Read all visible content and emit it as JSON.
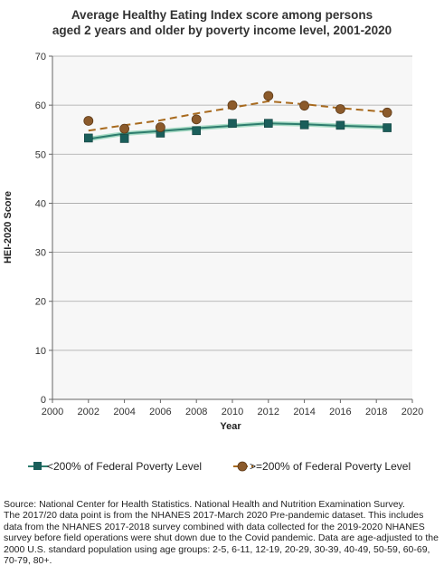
{
  "chart_data": {
    "type": "line",
    "title_lines": [
      "Average Healthy Eating Index score among  persons",
      "aged 2 years and older by poverty income level, 2001-2020"
    ],
    "xlabel": "Year",
    "ylabel": "HEI-2020 Score",
    "xlim": [
      2000,
      2020
    ],
    "ylim": [
      0,
      70
    ],
    "x_ticks": [
      2000,
      2002,
      2004,
      2006,
      2008,
      2010,
      2012,
      2014,
      2016,
      2018,
      2020
    ],
    "y_ticks": [
      0,
      10,
      20,
      30,
      40,
      50,
      60,
      70
    ],
    "grid": "horizontal",
    "plot_background": "#f7f7f7",
    "legend_position": "bottom",
    "x": [
      2002,
      2004,
      2006,
      2008,
      2010,
      2012,
      2014,
      2016,
      2018.6
    ],
    "series": [
      {
        "name": "<200% of Federal Poverty Level",
        "values": [
          53.3,
          53.2,
          54.3,
          54.8,
          56.3,
          56.3,
          56.0,
          55.9,
          55.4
        ],
        "trend": [
          53.1,
          54.2,
          54.7,
          55.3,
          55.8,
          56.3,
          56.1,
          55.8,
          55.5
        ],
        "marker": "square",
        "color": "#1a5e5a",
        "line_color": "#2e7d6e",
        "line_highlight": "#a9dcc6",
        "line_style": "solid"
      },
      {
        "name": ">=200% of Federal Poverty Level",
        "values": [
          56.8,
          55.2,
          55.5,
          57.1,
          60.0,
          61.9,
          59.9,
          59.2,
          58.5
        ],
        "trend": [
          54.8,
          55.9,
          56.9,
          58.3,
          59.5,
          60.8,
          60.2,
          59.4,
          58.6
        ],
        "marker": "circle",
        "color": "#8b5a2b",
        "line_color": "#a86a1e",
        "line_style": "dashed"
      }
    ]
  },
  "footnote": {
    "source": "Source: National Center for Health Statistics. National Health and Nutrition Examination Survey.",
    "note": "The 2017/20 data point is from the NHANES 2017-March 2020 Pre-pandemic dataset. This includes data from the NHANES 2017-2018 survey combined with data collected for the 2019-2020 NHANES survey before field operations were shut down due to the Covid pandemic. Data are age-adjusted to the 2000 U.S. standard population using age groups: 2-5, 6-11, 12-19, 20-29, 30-39, 40-49, 50-59, 60-69, 70-79, 80+."
  }
}
